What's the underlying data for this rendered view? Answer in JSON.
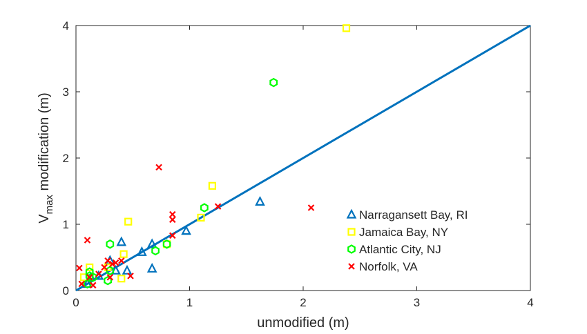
{
  "chart_data": {
    "type": "scatter",
    "xlabel": "unmodified (m)",
    "ylabel_main": "V",
    "ylabel_sub": "max",
    "ylabel_rest": " modification (m)",
    "xlim": [
      0,
      4
    ],
    "ylim": [
      0,
      4
    ],
    "xticks": [
      0,
      1,
      2,
      3,
      4
    ],
    "yticks": [
      0,
      1,
      2,
      3,
      4
    ],
    "grid": false,
    "legend_position": "lower-right",
    "reference_line": {
      "x": [
        0,
        4
      ],
      "y": [
        0,
        4
      ],
      "color": "#0072BD"
    },
    "series": [
      {
        "name": "Narragansett Bay, RI",
        "marker": "triangle",
        "color": "#0072BD",
        "points": [
          [
            0.1,
            0.1
          ],
          [
            0.13,
            0.2
          ],
          [
            0.2,
            0.22
          ],
          [
            0.3,
            0.45
          ],
          [
            0.35,
            0.3
          ],
          [
            0.4,
            0.73
          ],
          [
            0.45,
            0.3
          ],
          [
            0.58,
            0.58
          ],
          [
            0.67,
            0.7
          ],
          [
            0.67,
            0.33
          ],
          [
            0.97,
            0.9
          ],
          [
            1.62,
            1.34
          ]
        ]
      },
      {
        "name": "Jamaica Bay, NY",
        "marker": "square",
        "color": "#FFFF00",
        "points": [
          [
            0.07,
            0.2
          ],
          [
            0.12,
            0.35
          ],
          [
            0.28,
            0.35
          ],
          [
            0.4,
            0.18
          ],
          [
            0.42,
            0.55
          ],
          [
            0.46,
            1.04
          ],
          [
            0.8,
            0.7
          ],
          [
            1.1,
            1.1
          ],
          [
            1.2,
            1.58
          ],
          [
            2.38,
            3.96
          ]
        ]
      },
      {
        "name": "Atlantic City, NJ",
        "marker": "hexagon",
        "color": "#00FF00",
        "points": [
          [
            0.1,
            0.1
          ],
          [
            0.12,
            0.22
          ],
          [
            0.12,
            0.28
          ],
          [
            0.15,
            0.2
          ],
          [
            0.28,
            0.15
          ],
          [
            0.3,
            0.7
          ],
          [
            0.3,
            0.3
          ],
          [
            0.7,
            0.6
          ],
          [
            0.8,
            0.7
          ],
          [
            1.13,
            1.25
          ],
          [
            1.74,
            3.14
          ]
        ]
      },
      {
        "name": "Norfolk, VA",
        "marker": "x",
        "color": "#FF0000",
        "points": [
          [
            0.03,
            0.34
          ],
          [
            0.05,
            0.1
          ],
          [
            0.1,
            0.76
          ],
          [
            0.12,
            0.2
          ],
          [
            0.15,
            0.08
          ],
          [
            0.2,
            0.25
          ],
          [
            0.25,
            0.35
          ],
          [
            0.28,
            0.45
          ],
          [
            0.3,
            0.2
          ],
          [
            0.32,
            0.4
          ],
          [
            0.35,
            0.42
          ],
          [
            0.4,
            0.45
          ],
          [
            0.48,
            0.22
          ],
          [
            0.73,
            1.86
          ],
          [
            0.85,
            1.15
          ],
          [
            0.85,
            1.07
          ],
          [
            0.85,
            0.83
          ],
          [
            1.25,
            1.27
          ],
          [
            2.07,
            1.25
          ]
        ]
      }
    ]
  }
}
